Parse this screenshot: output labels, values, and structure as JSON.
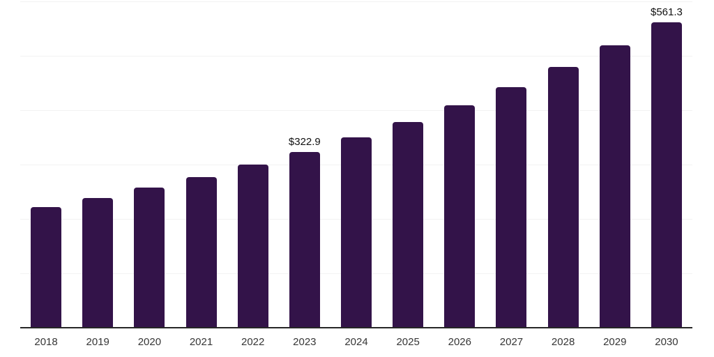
{
  "chart_data": {
    "type": "bar",
    "title": "",
    "xlabel": "",
    "ylabel": "",
    "categories": [
      "2018",
      "2019",
      "2020",
      "2021",
      "2022",
      "2023",
      "2024",
      "2025",
      "2026",
      "2027",
      "2028",
      "2029",
      "2030"
    ],
    "values": [
      221.8,
      238.1,
      257.2,
      277.3,
      299.5,
      322.9,
      349.4,
      378.2,
      409.3,
      442.9,
      479.3,
      518.7,
      561.3
    ],
    "annotations": [
      {
        "category": "2023",
        "text": "$322.9"
      },
      {
        "category": "2030",
        "text": "$561.3"
      }
    ],
    "ylim": [
      0,
      600
    ],
    "gridline_step": 100,
    "grid": "horizontal-only",
    "legend_position": "none",
    "y_tick_labels_visible": false,
    "colors": {
      "bar": "#331349",
      "gridline": "#f2f2f2",
      "axis_line": "#262626",
      "tick_label": "#363636",
      "data_label": "#111111",
      "background": "#ffffff"
    }
  }
}
